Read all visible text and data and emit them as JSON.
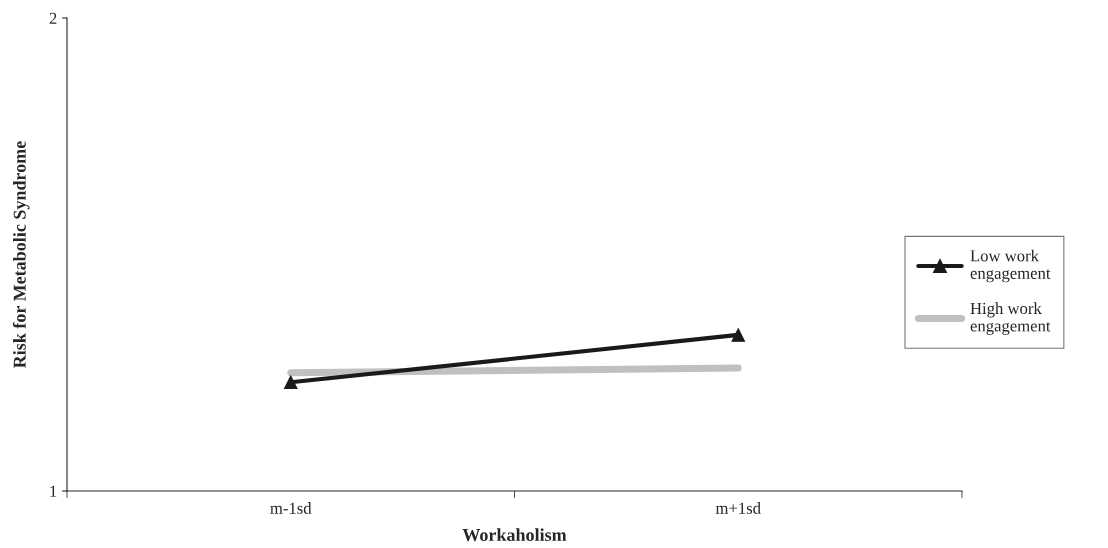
{
  "chart_data": {
    "type": "line",
    "xlabel": "Workaholism",
    "ylabel": "Risk for Metabolic Syndrome",
    "categories": [
      "m-1sd",
      "m+1sd"
    ],
    "series": [
      {
        "name": "Low work engagement",
        "color": "#1a1a1a",
        "values": [
          1.23,
          1.33
        ],
        "marker": "triangle"
      },
      {
        "name": "High work engagement",
        "color": "#c0c0c0",
        "values": [
          1.25,
          1.26
        ],
        "marker": "none"
      }
    ],
    "ylim": [
      1,
      2
    ],
    "yticks": [
      1,
      2
    ],
    "grid": false,
    "legend": "right"
  }
}
